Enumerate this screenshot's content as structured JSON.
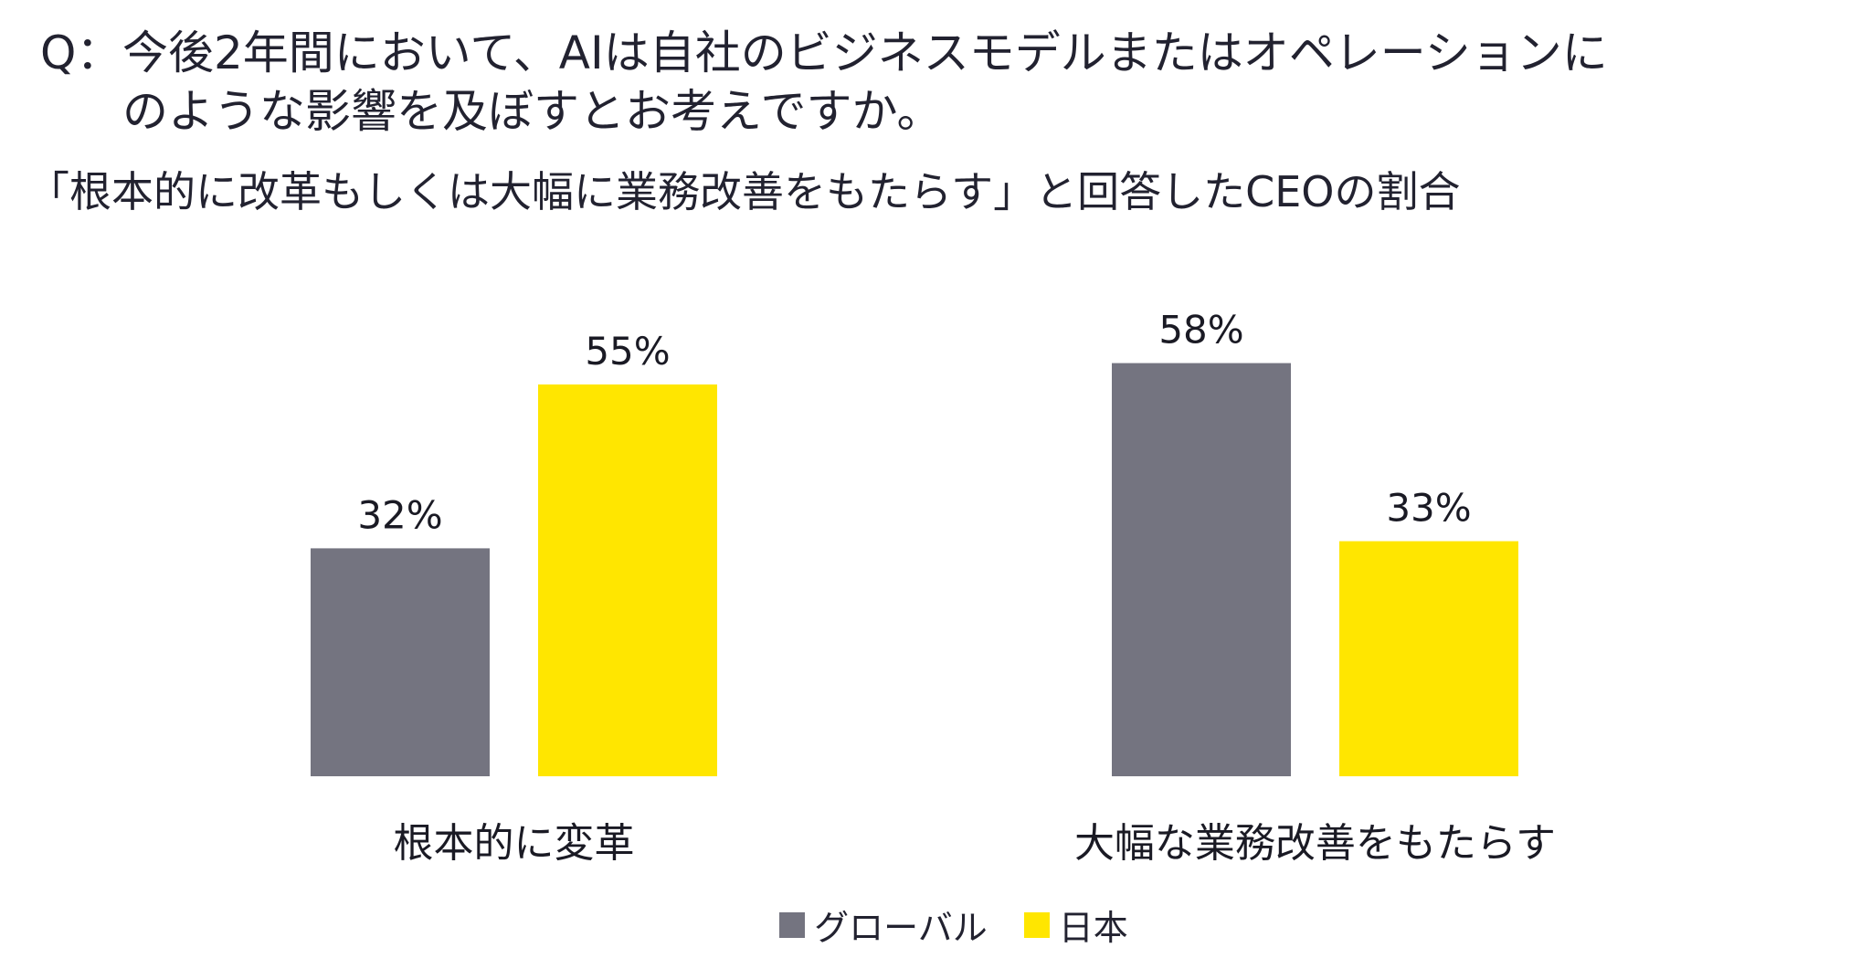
{
  "question": {
    "prefix": "Q：",
    "line1": "今後2年間において、AIは自社のビジネスモデルまたはオペレーションに",
    "line2": "のような影響を及ぼすとお考えですか。"
  },
  "subtitle": "「根本的に改革もしくは大幅に業務改善をもたらす」と回答したCEOの割合",
  "chart_data": {
    "type": "bar",
    "title": "「根本的に改革もしくは大幅に業務改善をもたらす」と回答したCEOの割合",
    "categories": [
      "根本的に変革",
      "大幅な業務改善をもたらす"
    ],
    "series": [
      {
        "name": "グローバル",
        "values": [
          32,
          58
        ],
        "labels": [
          "32%",
          "58%"
        ],
        "color": "#747480"
      },
      {
        "name": "日本",
        "values": [
          55,
          33
        ],
        "labels": [
          "55%",
          "33%"
        ],
        "color": "#FFE600"
      }
    ],
    "ylim": [
      0,
      100
    ],
    "unit": "%",
    "grid": false,
    "legend_position": "bottom"
  },
  "legend": [
    {
      "label": "グローバル",
      "color": "#747480"
    },
    {
      "label": "日本",
      "color": "#FFE600"
    }
  ]
}
